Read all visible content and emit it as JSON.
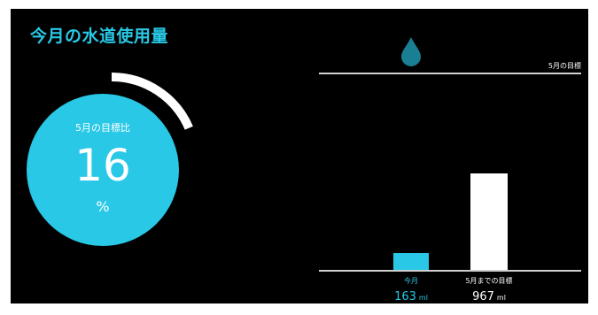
{
  "header": {
    "title": "今月の水道使用量"
  },
  "gauge": {
    "caption": "5月の目標比",
    "value": "16",
    "unit": "%",
    "fill_percent": 16,
    "fill_color": "#29c8e6",
    "ring_color": "#ffffff"
  },
  "bar_chart": {
    "goal_line_label": "5月の目標",
    "bars": [
      {
        "label": "今月",
        "value": "163",
        "unit": "ml",
        "color": "#29c8e6"
      },
      {
        "label": "5月までの目標",
        "value": "967",
        "unit": "ml",
        "color": "#ffffff"
      }
    ]
  },
  "icons": {
    "drop": "water-drop-icon"
  },
  "colors": {
    "accent": "#29c8e6",
    "background": "#000000"
  }
}
